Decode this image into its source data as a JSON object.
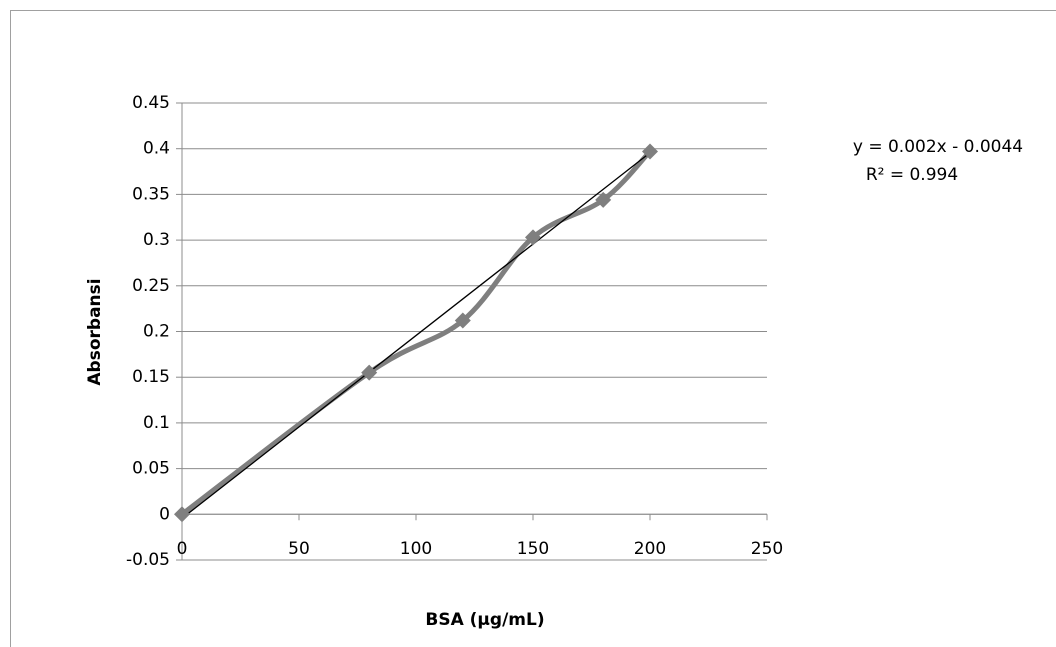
{
  "chart_data": {
    "type": "scatter",
    "smooth": true,
    "x_label": "BSA (µg/mL)",
    "y_label": "Absorbansi",
    "x": [
      0,
      80,
      120,
      150,
      180,
      200
    ],
    "series": [
      {
        "color": "#7f7f7f",
        "values": [
          0,
          0.155,
          0.212,
          0.303,
          0.344,
          0.397
        ]
      }
    ],
    "xlim": [
      0,
      250
    ],
    "xticks": [
      0,
      50,
      100,
      150,
      200,
      250
    ],
    "ylim": [
      -0.05,
      0.45
    ],
    "yticks": [
      -0.05,
      0,
      0.05,
      0.1,
      0.15,
      0.2,
      0.25,
      0.3,
      0.35,
      0.4,
      0.45
    ],
    "grid": true,
    "trendline": {
      "slope": 0.002,
      "intercept": -0.0044,
      "color": "#000000",
      "equation": "y = 0.002x - 0.0044",
      "r_squared": "R² = 0.994"
    }
  }
}
